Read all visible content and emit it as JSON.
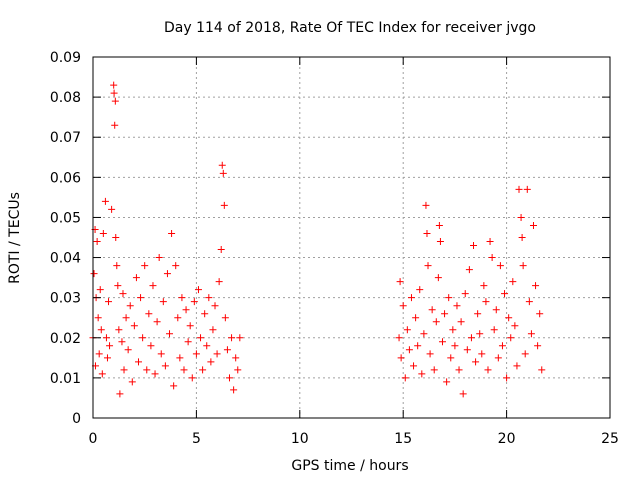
{
  "chart_data": {
    "type": "scatter",
    "title": "Day 114 of 2018, Rate Of TEC Index for receiver jvgo",
    "xlabel": "GPS time / hours",
    "ylabel": "ROTI / TECUs",
    "xlim": [
      0,
      25
    ],
    "ylim": [
      0,
      0.09
    ],
    "grid": true,
    "marker": "+",
    "color": "#ff0000",
    "x_ticks": [
      "0",
      "5",
      "10",
      "15",
      "20",
      "25"
    ],
    "y_ticks": [
      "0",
      "0.01",
      "0.02",
      "0.03",
      "0.04",
      "0.05",
      "0.06",
      "0.07",
      "0.08",
      "0.09"
    ],
    "series": [
      {
        "name": "ROTI",
        "x": [
          0.0,
          0.05,
          0.1,
          0.12,
          0.15,
          0.2,
          0.25,
          0.3,
          0.35,
          0.4,
          0.45,
          0.5,
          0.6,
          0.65,
          0.7,
          0.75,
          0.8,
          0.9,
          1.0,
          1.02,
          1.05,
          1.08,
          1.1,
          1.15,
          1.2,
          1.25,
          1.3,
          1.4,
          1.45,
          1.5,
          1.6,
          1.7,
          1.8,
          1.9,
          2.0,
          2.1,
          2.2,
          2.3,
          2.4,
          2.5,
          2.6,
          2.7,
          2.8,
          2.9,
          3.0,
          3.1,
          3.2,
          3.3,
          3.4,
          3.5,
          3.6,
          3.7,
          3.8,
          3.9,
          4.0,
          4.1,
          4.2,
          4.3,
          4.4,
          4.5,
          4.6,
          4.7,
          4.8,
          4.9,
          5.0,
          5.1,
          5.2,
          5.3,
          5.4,
          5.5,
          5.6,
          5.7,
          5.8,
          5.9,
          6.0,
          6.1,
          6.2,
          6.25,
          6.3,
          6.35,
          6.4,
          6.5,
          6.6,
          6.7,
          6.8,
          6.9,
          7.0,
          7.1,
          14.8,
          14.85,
          14.9,
          15.0,
          15.1,
          15.2,
          15.3,
          15.4,
          15.5,
          15.6,
          15.7,
          15.8,
          15.9,
          16.0,
          16.1,
          16.15,
          16.2,
          16.3,
          16.4,
          16.5,
          16.6,
          16.7,
          16.75,
          16.8,
          16.9,
          17.0,
          17.1,
          17.2,
          17.3,
          17.4,
          17.5,
          17.6,
          17.7,
          17.8,
          17.9,
          18.0,
          18.1,
          18.2,
          18.3,
          18.4,
          18.5,
          18.6,
          18.7,
          18.8,
          18.9,
          19.0,
          19.1,
          19.2,
          19.3,
          19.4,
          19.5,
          19.6,
          19.7,
          19.8,
          19.9,
          20.0,
          20.1,
          20.2,
          20.3,
          20.4,
          20.5,
          20.6,
          20.7,
          20.75,
          20.8,
          20.9,
          21.0,
          21.1,
          21.2,
          21.3,
          21.4,
          21.5,
          21.6,
          21.7
        ],
        "y": [
          0.02,
          0.036,
          0.047,
          0.013,
          0.03,
          0.044,
          0.025,
          0.016,
          0.032,
          0.022,
          0.011,
          0.046,
          0.054,
          0.02,
          0.015,
          0.029,
          0.018,
          0.052,
          0.083,
          0.081,
          0.073,
          0.079,
          0.045,
          0.038,
          0.033,
          0.022,
          0.006,
          0.019,
          0.031,
          0.012,
          0.025,
          0.017,
          0.028,
          0.009,
          0.023,
          0.035,
          0.014,
          0.03,
          0.02,
          0.038,
          0.012,
          0.026,
          0.018,
          0.033,
          0.011,
          0.024,
          0.04,
          0.016,
          0.029,
          0.013,
          0.036,
          0.021,
          0.046,
          0.008,
          0.038,
          0.025,
          0.015,
          0.03,
          0.012,
          0.027,
          0.019,
          0.023,
          0.01,
          0.029,
          0.016,
          0.032,
          0.02,
          0.012,
          0.026,
          0.018,
          0.03,
          0.014,
          0.022,
          0.028,
          0.016,
          0.034,
          0.042,
          0.063,
          0.061,
          0.053,
          0.025,
          0.017,
          0.01,
          0.02,
          0.007,
          0.015,
          0.012,
          0.02,
          0.02,
          0.034,
          0.015,
          0.028,
          0.01,
          0.022,
          0.017,
          0.03,
          0.013,
          0.025,
          0.018,
          0.032,
          0.011,
          0.021,
          0.053,
          0.046,
          0.038,
          0.016,
          0.027,
          0.012,
          0.024,
          0.035,
          0.048,
          0.044,
          0.019,
          0.026,
          0.009,
          0.03,
          0.015,
          0.022,
          0.018,
          0.028,
          0.012,
          0.024,
          0.006,
          0.031,
          0.017,
          0.037,
          0.02,
          0.043,
          0.014,
          0.026,
          0.021,
          0.016,
          0.033,
          0.029,
          0.012,
          0.044,
          0.04,
          0.022,
          0.027,
          0.015,
          0.038,
          0.018,
          0.031,
          0.01,
          0.025,
          0.02,
          0.034,
          0.023,
          0.013,
          0.057,
          0.05,
          0.045,
          0.038,
          0.016,
          0.057,
          0.029,
          0.021,
          0.048,
          0.033,
          0.018,
          0.026,
          0.012
        ]
      }
    ]
  }
}
